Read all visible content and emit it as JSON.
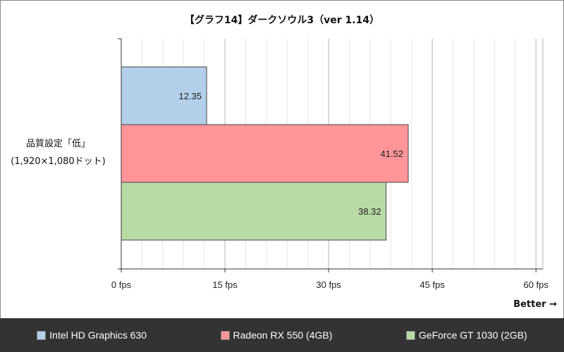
{
  "chart_data": {
    "type": "bar",
    "orientation": "horizontal",
    "title": "【グラフ14】ダークソウル3（ver 1.14）",
    "categories": [
      "品質設定「低」\n(1,920×1,080ドット)"
    ],
    "category_lines": [
      "品質設定「低」",
      "(1,920×1,080ドット)"
    ],
    "series": [
      {
        "name": "Intel HD Graphics 630",
        "values": [
          12.35
        ],
        "color": "#b3cfe9"
      },
      {
        "name": "Radeon RX 550 (4GB)",
        "values": [
          41.52
        ],
        "color": "#ff9599"
      },
      {
        "name": "GeForce GT 1030 (2GB)",
        "values": [
          38.32
        ],
        "color": "#b9d9a5"
      }
    ],
    "xlim": [
      0,
      61
    ],
    "xticks": [
      0,
      15,
      30,
      45,
      60
    ],
    "xtick_labels": [
      "0 fps",
      "15 fps",
      "30 fps",
      "45 fps",
      "60 fps"
    ],
    "grid": true,
    "legend_position": "bottom",
    "annotation": "Better →"
  },
  "colors": {
    "legend_bg": "#333333",
    "grid_major": "#b4b4b4",
    "grid_minor": "#e6e6e6"
  }
}
